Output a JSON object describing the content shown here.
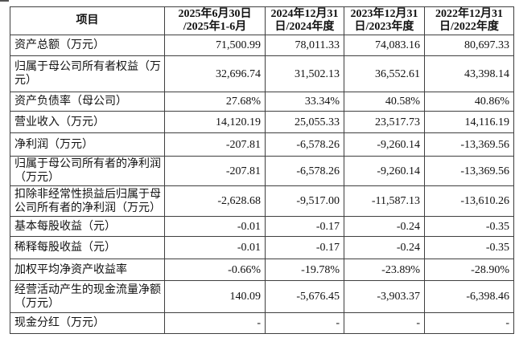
{
  "table": {
    "columns": [
      "项目",
      "2025年6月30日\n/2025年1-6月",
      "2024年12月31\n日/2024年度",
      "2023年12月31\n日/2023年度",
      "2022年12月31\n日/2022年度"
    ],
    "rows": [
      {
        "label": "资产总额（万元）",
        "values": [
          "71,500.99",
          "78,011.33",
          "74,083.16",
          "80,697.33"
        ]
      },
      {
        "label": "归属于母公司所有者权益（万元）",
        "values": [
          "32,696.74",
          "31,502.13",
          "36,552.61",
          "43,398.14"
        ]
      },
      {
        "label": "资产负债率（母公司）",
        "values": [
          "27.68%",
          "33.34%",
          "40.58%",
          "40.86%"
        ]
      },
      {
        "label": "营业收入（万元）",
        "values": [
          "14,120.19",
          "25,055.33",
          "23,517.73",
          "14,116.19"
        ]
      },
      {
        "label": "净利润（万元）",
        "values": [
          "-207.81",
          "-6,578.26",
          "-9,260.14",
          "-13,369.56"
        ]
      },
      {
        "label": "归属于母公司所有者的净利润（万元）",
        "values": [
          "-207.81",
          "-6,578.26",
          "-9,260.14",
          "-13,369.56"
        ]
      },
      {
        "label": "扣除非经常性损益后归属于母公司所有者的净利润（万元）",
        "values": [
          "-2,628.68",
          "-9,517.00",
          "-11,587.13",
          "-13,610.26"
        ]
      },
      {
        "label": "基本每股收益（元）",
        "values": [
          "-0.01",
          "-0.17",
          "-0.24",
          "-0.35"
        ]
      },
      {
        "label": "稀释每股收益（元）",
        "values": [
          "-0.01",
          "-0.17",
          "-0.24",
          "-0.35"
        ]
      },
      {
        "label": "加权平均净资产收益率",
        "values": [
          "-0.66%",
          "-19.78%",
          "-23.89%",
          "-28.90%"
        ]
      },
      {
        "label": "经营活动产生的现金流量净额（万元）",
        "values": [
          "140.09",
          "-5,676.45",
          "-3,903.37",
          "-6,398.46"
        ]
      },
      {
        "label": "现金分红（万元）",
        "values": [
          "-",
          "-",
          "-",
          "-"
        ]
      }
    ],
    "colors": {
      "border": "#3f3f3f",
      "text": "#111111",
      "background": "#ffffff"
    }
  }
}
